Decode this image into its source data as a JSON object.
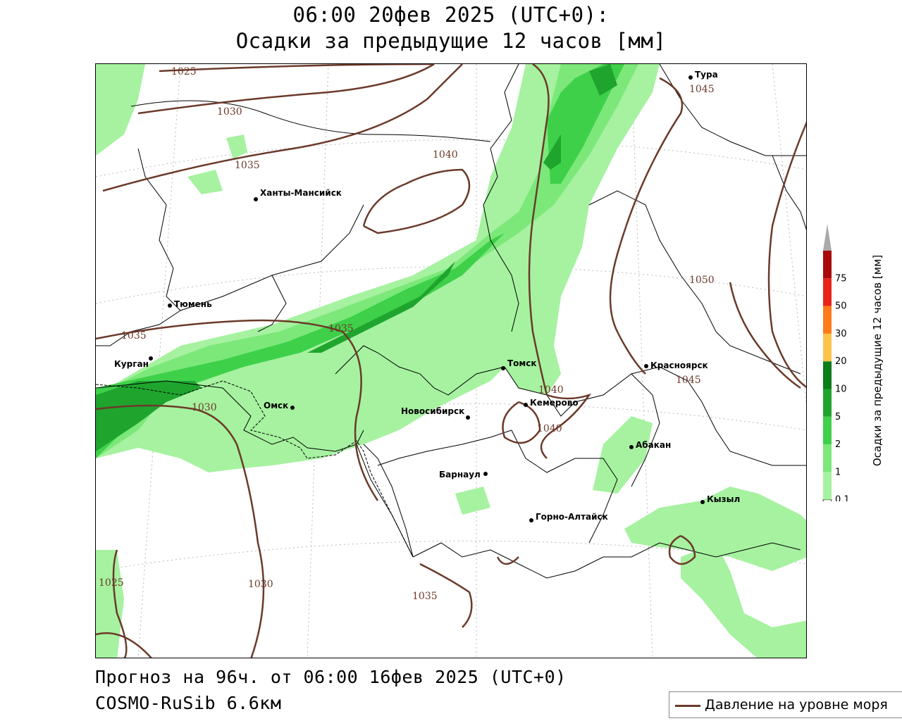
{
  "title": {
    "line1": "06:00 20фев 2025 (UTC+0):",
    "line2": "Осадки за предыдущие 12 часов [мм]"
  },
  "footer": {
    "forecast": "Прогноз на 96ч. от 06:00 16фев 2025 (UTC+0)",
    "model": "COSMO-RuSib 6.6км"
  },
  "legend": {
    "pressure_label": "Давление на уровне моря",
    "pressure_color": "#6b3a2a"
  },
  "colorbar": {
    "title": "Осадки за предыдущие 12 часов [мм]",
    "levels": [
      "0.1",
      "1",
      "2",
      "5",
      "10",
      "20",
      "30",
      "50",
      "75"
    ],
    "colors": [
      "#a6f2a0",
      "#7ce87a",
      "#3fd04a",
      "#1fa52e",
      "#0c7d1b",
      "#ffc24d",
      "#ff7a1a",
      "#e8241a",
      "#a80a0a",
      "#aaaaaa"
    ]
  },
  "map": {
    "cities": [
      {
        "name": "Тура"
      },
      {
        "name": "Ханты-Мансийск"
      },
      {
        "name": "Тюмень"
      },
      {
        "name": "Курган"
      },
      {
        "name": "Омск"
      },
      {
        "name": "Новосибирск"
      },
      {
        "name": "Томск"
      },
      {
        "name": "Кемерово"
      },
      {
        "name": "Красноярск"
      },
      {
        "name": "Абакан"
      },
      {
        "name": "Барнаул"
      },
      {
        "name": "Горно-Алтайск"
      },
      {
        "name": "Кызыл"
      }
    ],
    "isobar_labels": [
      "1025",
      "1030",
      "1035",
      "1040",
      "1045",
      "1035",
      "1035",
      "1030",
      "1040",
      "1040",
      "1045",
      "1050",
      "1025",
      "1030",
      "1035"
    ]
  }
}
